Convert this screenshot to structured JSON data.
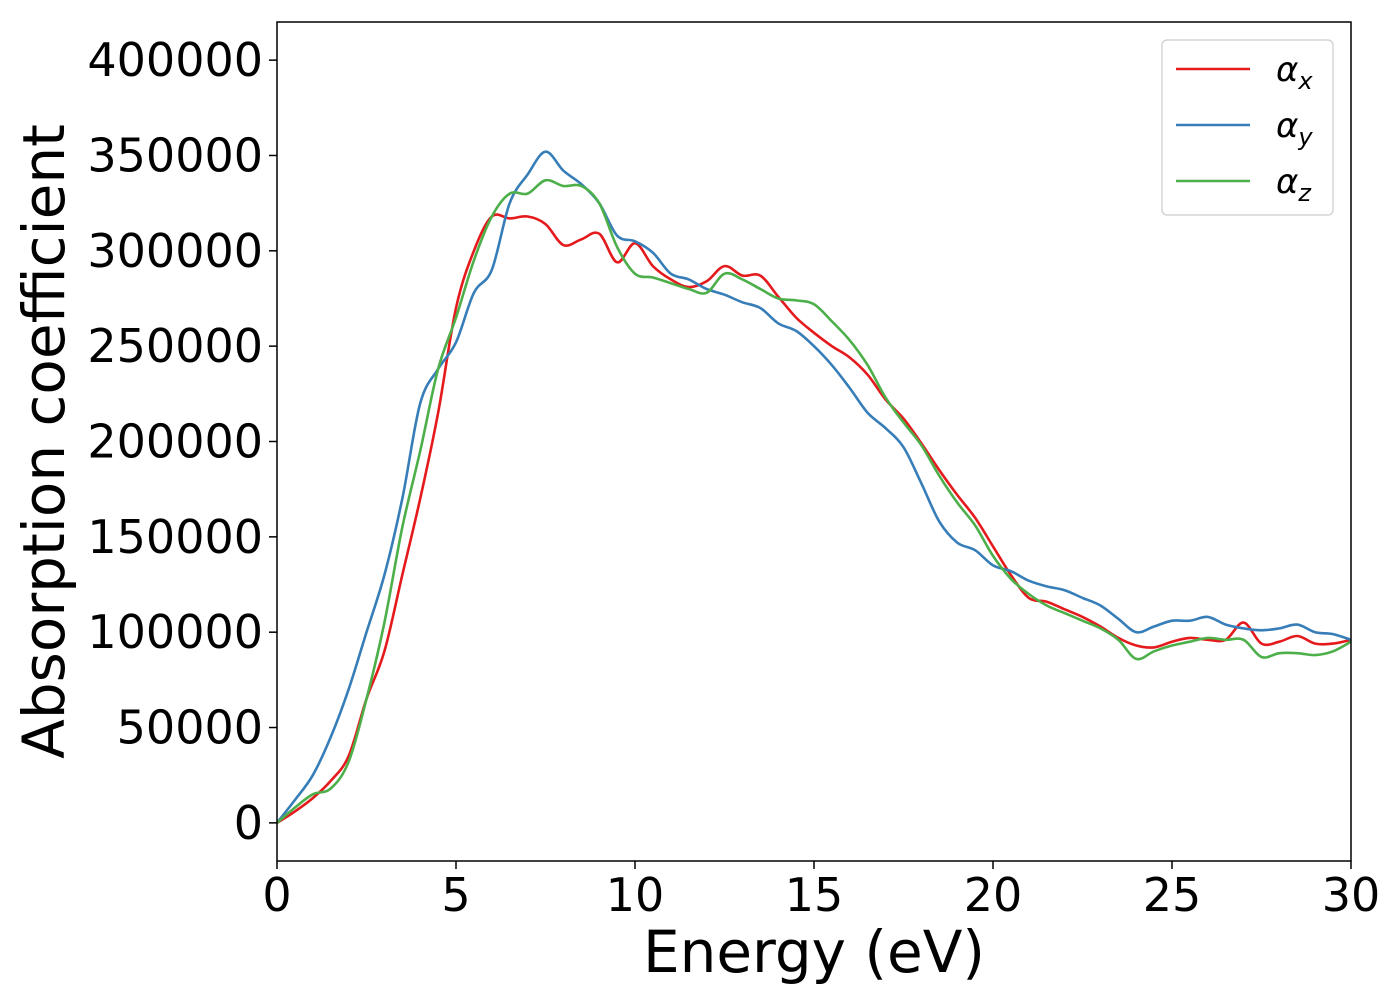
{
  "chart_data": {
    "type": "line",
    "title": "",
    "xlabel": "Energy (eV)",
    "ylabel": "Absorption coefficient",
    "xlim": [
      0,
      30
    ],
    "ylim": [
      -20000,
      420000
    ],
    "xticks": [
      0,
      5,
      10,
      15,
      20,
      25,
      30
    ],
    "yticks": [
      0,
      50000,
      100000,
      150000,
      200000,
      250000,
      300000,
      350000,
      400000
    ],
    "grid": false,
    "legend_position": "top-right",
    "series": [
      {
        "name": "α_x",
        "label_main": "α",
        "label_sub": "x",
        "color": "#e41a1c",
        "x": [
          0,
          0.5,
          1,
          1.5,
          2,
          2.5,
          3,
          3.5,
          4,
          4.5,
          5,
          5.5,
          6,
          6.5,
          7,
          7.5,
          8,
          8.5,
          9,
          9.5,
          10,
          10.5,
          11,
          11.5,
          12,
          12.5,
          13,
          13.5,
          14,
          14.5,
          15,
          15.5,
          16,
          16.5,
          17,
          17.5,
          18,
          18.5,
          19,
          19.5,
          20,
          20.5,
          21,
          21.5,
          22,
          22.5,
          23,
          23.5,
          24,
          24.5,
          25,
          25.5,
          26,
          26.5,
          27,
          27.5,
          28,
          28.5,
          29,
          29.5,
          30
        ],
        "y": [
          0,
          6000,
          13000,
          22000,
          35000,
          65000,
          90000,
          130000,
          170000,
          215000,
          270000,
          300000,
          318000,
          317000,
          318000,
          314000,
          303000,
          306000,
          309000,
          294000,
          304000,
          292000,
          285000,
          281000,
          284000,
          292000,
          287000,
          287000,
          276000,
          265000,
          257000,
          250000,
          244000,
          235000,
          222000,
          212000,
          199000,
          185000,
          172000,
          160000,
          145000,
          130000,
          118000,
          116000,
          112000,
          108000,
          103000,
          97000,
          93000,
          92000,
          95000,
          97000,
          96000,
          96000,
          105000,
          94000,
          95000,
          98000,
          94000,
          94000,
          96000
        ]
      },
      {
        "name": "α_y",
        "label_main": "α",
        "label_sub": "y",
        "color": "#377eb8",
        "x": [
          0,
          0.5,
          1,
          1.5,
          2,
          2.5,
          3,
          3.5,
          4,
          4.5,
          5,
          5.5,
          6,
          6.5,
          7,
          7.5,
          8,
          8.5,
          9,
          9.5,
          10,
          10.5,
          11,
          11.5,
          12,
          12.5,
          13,
          13.5,
          14,
          14.5,
          15,
          15.5,
          16,
          16.5,
          17,
          17.5,
          18,
          18.5,
          19,
          19.5,
          20,
          20.5,
          21,
          21.5,
          22,
          22.5,
          23,
          23.5,
          24,
          24.5,
          25,
          25.5,
          26,
          26.5,
          27,
          27.5,
          28,
          28.5,
          29,
          29.5,
          30
        ],
        "y": [
          0,
          12000,
          25000,
          45000,
          70000,
          100000,
          130000,
          170000,
          220000,
          238000,
          252000,
          278000,
          290000,
          325000,
          340000,
          352000,
          342000,
          335000,
          325000,
          308000,
          305000,
          299000,
          288000,
          285000,
          280000,
          277000,
          273000,
          270000,
          262000,
          258000,
          250000,
          240000,
          228000,
          215000,
          207000,
          197000,
          178000,
          158000,
          147000,
          143000,
          135000,
          132000,
          127000,
          124000,
          122000,
          118000,
          114000,
          107000,
          100000,
          103000,
          106000,
          106000,
          108000,
          104000,
          102000,
          101000,
          102000,
          104000,
          100000,
          99000,
          96000
        ]
      },
      {
        "name": "α_z",
        "label_main": "α",
        "label_sub": "z",
        "color": "#4daf4a",
        "x": [
          0,
          0.5,
          1,
          1.5,
          2,
          2.5,
          3,
          3.5,
          4,
          4.5,
          5,
          5.5,
          6,
          6.5,
          7,
          7.5,
          8,
          8.5,
          9,
          9.5,
          10,
          10.5,
          11,
          11.5,
          12,
          12.5,
          13,
          13.5,
          14,
          14.5,
          15,
          15.5,
          16,
          16.5,
          17,
          17.5,
          18,
          18.5,
          19,
          19.5,
          20,
          20.5,
          21,
          21.5,
          22,
          22.5,
          23,
          23.5,
          24,
          24.5,
          25,
          25.5,
          26,
          26.5,
          27,
          27.5,
          28,
          28.5,
          29,
          29.5,
          30
        ],
        "y": [
          0,
          8000,
          15000,
          18000,
          32000,
          65000,
          105000,
          155000,
          195000,
          238000,
          265000,
          295000,
          318000,
          330000,
          330000,
          337000,
          334000,
          334000,
          325000,
          302000,
          288000,
          286000,
          283000,
          280000,
          278000,
          288000,
          285000,
          280000,
          275000,
          274000,
          272000,
          263000,
          253000,
          240000,
          223000,
          210000,
          198000,
          182000,
          168000,
          156000,
          140000,
          128000,
          120000,
          114000,
          110000,
          106000,
          102000,
          96000,
          86000,
          90000,
          93000,
          95000,
          97000,
          96000,
          96000,
          87000,
          89000,
          89000,
          88000,
          90000,
          95000
        ]
      }
    ]
  }
}
